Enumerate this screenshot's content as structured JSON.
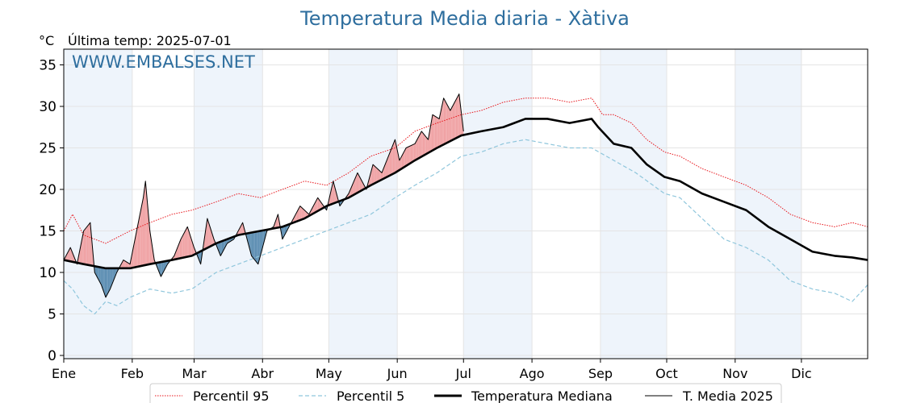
{
  "chart_data": {
    "type": "line",
    "title": "Temperatura Media diaria - Xàtiva",
    "unit_label": "°C",
    "subtitle": "Última temp: 2025-07-01",
    "watermark": "WWW.EMBALSES.NET",
    "ylim": [
      0,
      37
    ],
    "yticks": [
      "0",
      "5",
      "10",
      "15",
      "20",
      "25",
      "30",
      "35"
    ],
    "months": [
      "Ene",
      "Feb",
      "Mar",
      "Abr",
      "May",
      "Jun",
      "Jul",
      "Ago",
      "Sep",
      "Oct",
      "Nov",
      "Dic"
    ],
    "grid": true,
    "legend_position": "bottom",
    "colors": {
      "title": "#2e6e9e",
      "p95": "#e8151b",
      "p5": "#8fc6dc",
      "median": "#000000",
      "current": "#000000",
      "above_fill": "#f0a3a5",
      "below_fill": "#5e8fb3",
      "shade": "#eef4fb"
    },
    "series": [
      {
        "name": "Percentil 95",
        "style": "dotted",
        "color": "#e8151b",
        "points": [
          [
            1,
            15
          ],
          [
            5,
            17
          ],
          [
            10,
            14.5
          ],
          [
            20,
            13.5
          ],
          [
            31,
            15
          ],
          [
            40,
            16
          ],
          [
            50,
            17
          ],
          [
            59,
            17.5
          ],
          [
            70,
            18.5
          ],
          [
            80,
            19.5
          ],
          [
            90,
            19
          ],
          [
            100,
            20
          ],
          [
            110,
            21
          ],
          [
            120,
            20.5
          ],
          [
            130,
            22
          ],
          [
            140,
            24
          ],
          [
            151,
            25
          ],
          [
            160,
            27
          ],
          [
            170,
            28
          ],
          [
            181,
            29
          ],
          [
            190,
            29.5
          ],
          [
            200,
            30.5
          ],
          [
            210,
            31
          ],
          [
            220,
            31
          ],
          [
            230,
            30.5
          ],
          [
            240,
            31
          ],
          [
            245,
            29
          ],
          [
            250,
            29
          ],
          [
            258,
            28
          ],
          [
            265,
            26
          ],
          [
            273,
            24.5
          ],
          [
            280,
            24
          ],
          [
            290,
            22.5
          ],
          [
            300,
            21.5
          ],
          [
            310,
            20.5
          ],
          [
            320,
            19
          ],
          [
            330,
            17
          ],
          [
            340,
            16
          ],
          [
            350,
            15.5
          ],
          [
            358,
            16
          ],
          [
            365,
            15.5
          ]
        ]
      },
      {
        "name": "Percentil 5",
        "style": "dashed",
        "color": "#8fc6dc",
        "points": [
          [
            1,
            9
          ],
          [
            5,
            8
          ],
          [
            10,
            6
          ],
          [
            15,
            5
          ],
          [
            20,
            6.5
          ],
          [
            25,
            6
          ],
          [
            31,
            7
          ],
          [
            40,
            8
          ],
          [
            50,
            7.5
          ],
          [
            59,
            8
          ],
          [
            70,
            10
          ],
          [
            80,
            11
          ],
          [
            90,
            12
          ],
          [
            100,
            13
          ],
          [
            110,
            14
          ],
          [
            120,
            15
          ],
          [
            130,
            16
          ],
          [
            140,
            17
          ],
          [
            151,
            19
          ],
          [
            160,
            20.5
          ],
          [
            170,
            22
          ],
          [
            181,
            24
          ],
          [
            190,
            24.5
          ],
          [
            200,
            25.5
          ],
          [
            210,
            26
          ],
          [
            220,
            25.5
          ],
          [
            230,
            25
          ],
          [
            240,
            25
          ],
          [
            250,
            23.5
          ],
          [
            260,
            22
          ],
          [
            273,
            19.5
          ],
          [
            280,
            19
          ],
          [
            290,
            16.5
          ],
          [
            300,
            14
          ],
          [
            310,
            13
          ],
          [
            320,
            11.5
          ],
          [
            330,
            9
          ],
          [
            340,
            8
          ],
          [
            350,
            7.5
          ],
          [
            358,
            6.5
          ],
          [
            365,
            8.5
          ]
        ]
      },
      {
        "name": "Temperatura Mediana",
        "style": "solid-thick",
        "color": "#000000",
        "points": [
          [
            1,
            11.5
          ],
          [
            10,
            11
          ],
          [
            20,
            10.5
          ],
          [
            31,
            10.5
          ],
          [
            40,
            11
          ],
          [
            50,
            11.5
          ],
          [
            59,
            12
          ],
          [
            70,
            13.5
          ],
          [
            80,
            14.5
          ],
          [
            90,
            15
          ],
          [
            100,
            15.5
          ],
          [
            110,
            16.5
          ],
          [
            120,
            18
          ],
          [
            130,
            19
          ],
          [
            140,
            20.5
          ],
          [
            151,
            22
          ],
          [
            160,
            23.5
          ],
          [
            170,
            25
          ],
          [
            181,
            26.5
          ],
          [
            190,
            27
          ],
          [
            200,
            27.5
          ],
          [
            210,
            28.5
          ],
          [
            220,
            28.5
          ],
          [
            230,
            28
          ],
          [
            240,
            28.5
          ],
          [
            243,
            27.5
          ],
          [
            250,
            25.5
          ],
          [
            258,
            25
          ],
          [
            265,
            23
          ],
          [
            273,
            21.5
          ],
          [
            280,
            21
          ],
          [
            290,
            19.5
          ],
          [
            300,
            18.5
          ],
          [
            310,
            17.5
          ],
          [
            320,
            15.5
          ],
          [
            330,
            14
          ],
          [
            340,
            12.5
          ],
          [
            350,
            12
          ],
          [
            358,
            11.8
          ],
          [
            365,
            11.5
          ]
        ]
      },
      {
        "name": "T. Media 2025",
        "style": "solid-thin",
        "color": "#000000",
        "points": [
          [
            1,
            11.5
          ],
          [
            4,
            13
          ],
          [
            7,
            11
          ],
          [
            10,
            15
          ],
          [
            13,
            16
          ],
          [
            15,
            10
          ],
          [
            18,
            8.5
          ],
          [
            20,
            7
          ],
          [
            22,
            8
          ],
          [
            25,
            10
          ],
          [
            28,
            11.5
          ],
          [
            31,
            11
          ],
          [
            34,
            15
          ],
          [
            37,
            19
          ],
          [
            38,
            21
          ],
          [
            40,
            15
          ],
          [
            42,
            11.5
          ],
          [
            45,
            9.5
          ],
          [
            48,
            11
          ],
          [
            51,
            12
          ],
          [
            54,
            14
          ],
          [
            57,
            15.5
          ],
          [
            60,
            13
          ],
          [
            63,
            11
          ],
          [
            66,
            16.5
          ],
          [
            69,
            14
          ],
          [
            72,
            12
          ],
          [
            75,
            13.5
          ],
          [
            78,
            14
          ],
          [
            82,
            16
          ],
          [
            86,
            12
          ],
          [
            89,
            11
          ],
          [
            91,
            13
          ],
          [
            93,
            15
          ],
          [
            96,
            15.5
          ],
          [
            98,
            17
          ],
          [
            100,
            14
          ],
          [
            104,
            16
          ],
          [
            108,
            18
          ],
          [
            112,
            17
          ],
          [
            116,
            19
          ],
          [
            120,
            17.5
          ],
          [
            123,
            21
          ],
          [
            126,
            18
          ],
          [
            130,
            19.5
          ],
          [
            134,
            22
          ],
          [
            138,
            20
          ],
          [
            141,
            23
          ],
          [
            145,
            22
          ],
          [
            148,
            24
          ],
          [
            151,
            26
          ],
          [
            153,
            23.5
          ],
          [
            156,
            25
          ],
          [
            160,
            25.5
          ],
          [
            163,
            27
          ],
          [
            166,
            26
          ],
          [
            168,
            29
          ],
          [
            171,
            28.5
          ],
          [
            173,
            31
          ],
          [
            176,
            29.5
          ],
          [
            178,
            30.5
          ],
          [
            180,
            31.5
          ],
          [
            182,
            27
          ]
        ]
      }
    ]
  }
}
